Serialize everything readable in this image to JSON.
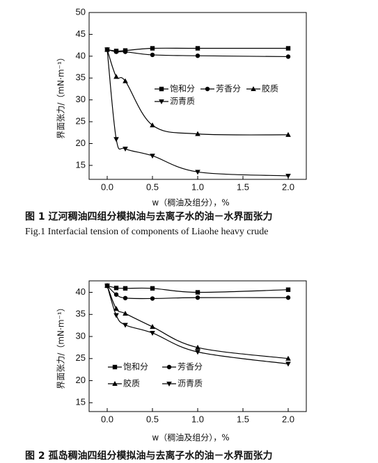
{
  "chart_data": [
    {
      "type": "line",
      "x": [
        0,
        0.1,
        0.2,
        0.5,
        1.0,
        2.0
      ],
      "series": [
        {
          "name": "饱和分",
          "color": "#000000",
          "marker": "square",
          "values": [
            41.5,
            41.2,
            41.3,
            41.8,
            41.8,
            41.8
          ]
        },
        {
          "name": "芳香分",
          "color": "#000000",
          "marker": "circle",
          "values": [
            41.5,
            41.0,
            41.0,
            40.3,
            40.1,
            39.9
          ]
        },
        {
          "name": "胶质",
          "color": "#000000",
          "marker": "triangle-up",
          "values": [
            41.5,
            35.3,
            34.3,
            24.2,
            22.2,
            22.0
          ]
        },
        {
          "name": "沥青质",
          "color": "#000000",
          "marker": "triangle-down",
          "values": [
            41.5,
            21.0,
            18.8,
            17.2,
            13.5,
            12.6
          ]
        }
      ],
      "xlim": [
        -0.2,
        2.2
      ],
      "ylim": [
        11.8,
        50
      ],
      "xticks": [
        {
          "value": 0,
          "label": "0.0"
        },
        0.5,
        {
          "value": 1,
          "label": "1.0"
        },
        1.5,
        {
          "value": 2,
          "label": "2.0"
        }
      ],
      "yticks": [
        15,
        20,
        25,
        30,
        35,
        40,
        45,
        50
      ],
      "x_label": "w（稠油及组分），%",
      "y_label": "界面张力/（mN·m⁻¹）",
      "legend": "right",
      "caption": "图 1   辽河稠油四组分模拟油与去离子水的油－水界面张力",
      "caption_en": "Fig.1    Interfacial tension of components of Liaohe heavy crude"
    },
    {
      "type": "line",
      "x": [
        0,
        0.1,
        0.2,
        0.5,
        1.0,
        2.0
      ],
      "series": [
        {
          "name": "饱和分",
          "color": "#000000",
          "marker": "square",
          "values": [
            41.5,
            41.0,
            40.9,
            40.9,
            40.0,
            40.6
          ]
        },
        {
          "name": "芳香分",
          "color": "#000000",
          "marker": "circle",
          "values": [
            41.5,
            39.5,
            38.7,
            38.6,
            38.8,
            38.8
          ]
        },
        {
          "name": "胶质",
          "color": "#000000",
          "marker": "triangle-up",
          "values": [
            41.5,
            36.3,
            35.2,
            32.2,
            27.5,
            25.0
          ]
        },
        {
          "name": "沥青质",
          "color": "#000000",
          "marker": "triangle-down",
          "values": [
            41.5,
            34.8,
            32.6,
            30.8,
            26.5,
            23.8
          ]
        }
      ],
      "xlim": [
        -0.2,
        2.2
      ],
      "ylim": [
        13,
        42.6
      ],
      "xticks": [
        {
          "value": 0,
          "label": "0.0"
        },
        0.5,
        {
          "value": 1,
          "label": "1.0"
        },
        1.5,
        {
          "value": 2,
          "label": "2.0"
        }
      ],
      "yticks": [
        15,
        20,
        25,
        30,
        35,
        40
      ],
      "x_label": "w（稠油及组分），%",
      "y_label": "界面张力/（mN·m⁻¹）",
      "legend": "left",
      "caption": "图 2   孤岛稠油四组分模拟油与去离子水的油－水界面张力"
    }
  ]
}
